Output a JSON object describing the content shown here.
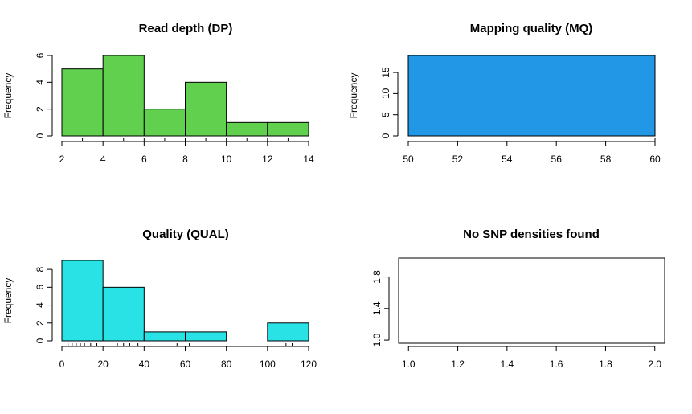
{
  "chart_data": [
    {
      "type": "bar",
      "title": "Read depth (DP)",
      "ylabel": "Frequency",
      "xlabel": "",
      "color": "#61d04f",
      "bins": [
        [
          2,
          4
        ],
        [
          4,
          6
        ],
        [
          6,
          8
        ],
        [
          8,
          10
        ],
        [
          10,
          12
        ],
        [
          12,
          14
        ]
      ],
      "values": [
        5,
        6,
        2,
        4,
        1,
        1
      ],
      "xlim": [
        2,
        14
      ],
      "ylim": [
        0,
        6
      ],
      "xticks": [
        2,
        4,
        6,
        8,
        10,
        12,
        14
      ],
      "yticks": [
        0,
        2,
        4,
        6
      ],
      "rug": [
        3,
        5,
        6,
        7,
        8,
        9,
        10,
        11,
        12,
        13
      ]
    },
    {
      "type": "bar",
      "title": "Mapping quality (MQ)",
      "ylabel": "Frequency",
      "xlabel": "",
      "color": "#2297e6",
      "bins": [
        [
          50,
          60
        ]
      ],
      "values": [
        19
      ],
      "xlim": [
        50,
        60
      ],
      "ylim": [
        0,
        19
      ],
      "xticks": [
        50,
        52,
        54,
        56,
        58,
        60
      ],
      "yticks": [
        0,
        5,
        10,
        15
      ],
      "rug": [
        60
      ]
    },
    {
      "type": "bar",
      "title": "Quality (QUAL)",
      "ylabel": "Frequency",
      "xlabel": "",
      "color": "#28e2e5",
      "bins": [
        [
          0,
          20
        ],
        [
          20,
          40
        ],
        [
          40,
          60
        ],
        [
          60,
          80
        ],
        [
          80,
          100
        ],
        [
          100,
          120
        ]
      ],
      "values": [
        9,
        6,
        1,
        1,
        0,
        2
      ],
      "xlim": [
        0,
        120
      ],
      "ylim": [
        0,
        9
      ],
      "xticks": [
        0,
        20,
        40,
        60,
        80,
        100,
        120
      ],
      "yticks": [
        0,
        2,
        4,
        6,
        8
      ],
      "rug": [
        3,
        5,
        7,
        9,
        11,
        14,
        17,
        27,
        30,
        33,
        37,
        56,
        62,
        109,
        112
      ]
    },
    {
      "type": "scatter",
      "title": "No SNP densities found",
      "ylabel": "",
      "xlabel": "",
      "xlim": [
        0.96,
        2.04
      ],
      "ylim": [
        0.96,
        2.04
      ],
      "xticks": [
        "1.0",
        "1.2",
        "1.4",
        "1.6",
        "1.8",
        "2.0"
      ],
      "yticks": [
        "1.0",
        "1.4",
        "1.8"
      ],
      "ytick_values": [
        1.0,
        1.4,
        1.8
      ],
      "x": [],
      "y": []
    }
  ]
}
